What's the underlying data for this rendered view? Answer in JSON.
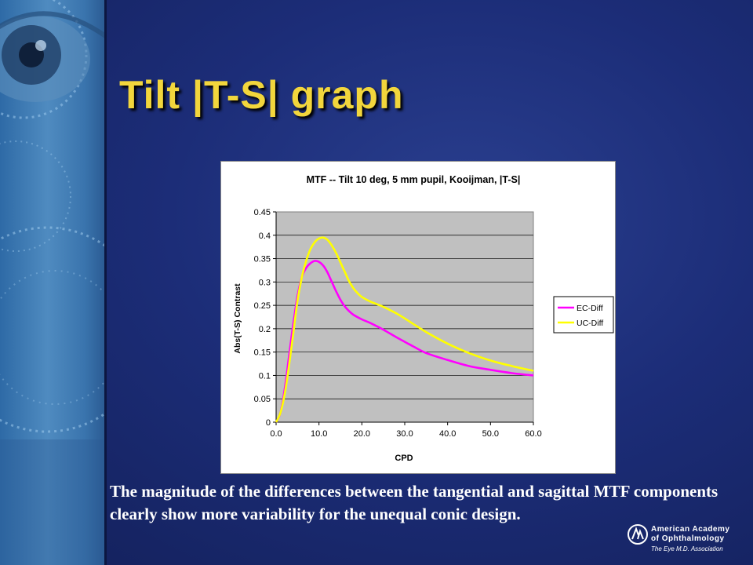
{
  "slide": {
    "title": "Tilt |T-S| graph",
    "caption": "The magnitude of the differences between the tangential and sagittal MTF components clearly show more variability for the unequal conic design."
  },
  "logo": {
    "line1": "American Academy",
    "line2": "of Ophthalmology",
    "tagline": "The Eye M.D. Association"
  },
  "colors": {
    "background": "#1c2d78",
    "title": "#f2d63c",
    "plot_area": "#c0c0c0",
    "ec_diff": "#ff00ff",
    "uc_diff": "#ffff00"
  },
  "chart_data": {
    "type": "line",
    "title": "MTF -- Tilt 10 deg, 5 mm pupil, Kooijman, |T-S|",
    "xlabel": "CPD",
    "ylabel": "Abs(T-S) Contrast",
    "xlim": [
      0,
      60
    ],
    "ylim": [
      0,
      0.45
    ],
    "x_ticks": [
      "0.0",
      "10.0",
      "20.0",
      "30.0",
      "40.0",
      "50.0",
      "60.0"
    ],
    "y_ticks": [
      "0",
      "0.05",
      "0.1",
      "0.15",
      "0.2",
      "0.25",
      "0.3",
      "0.35",
      "0.4",
      "0.45"
    ],
    "grid": "horizontal",
    "legend_position": "right",
    "series": [
      {
        "name": "EC-Diff",
        "color": "#ff00ff",
        "points": [
          [
            0,
            0
          ],
          [
            1,
            0.02
          ],
          [
            2,
            0.07
          ],
          [
            3,
            0.14
          ],
          [
            4,
            0.21
          ],
          [
            5,
            0.27
          ],
          [
            6,
            0.31
          ],
          [
            7,
            0.33
          ],
          [
            8,
            0.34
          ],
          [
            9,
            0.345
          ],
          [
            10,
            0.343
          ],
          [
            11,
            0.335
          ],
          [
            12,
            0.32
          ],
          [
            13,
            0.3
          ],
          [
            14,
            0.28
          ],
          [
            15,
            0.262
          ],
          [
            16,
            0.248
          ],
          [
            17,
            0.238
          ],
          [
            18,
            0.23
          ],
          [
            20,
            0.22
          ],
          [
            22,
            0.212
          ],
          [
            25,
            0.198
          ],
          [
            28,
            0.182
          ],
          [
            30,
            0.172
          ],
          [
            32,
            0.162
          ],
          [
            35,
            0.148
          ],
          [
            40,
            0.133
          ],
          [
            45,
            0.12
          ],
          [
            50,
            0.112
          ],
          [
            55,
            0.105
          ],
          [
            60,
            0.1
          ]
        ]
      },
      {
        "name": "UC-Diff",
        "color": "#ffff00",
        "points": [
          [
            0,
            0
          ],
          [
            1,
            0.02
          ],
          [
            2,
            0.06
          ],
          [
            3,
            0.12
          ],
          [
            4,
            0.19
          ],
          [
            5,
            0.26
          ],
          [
            6,
            0.31
          ],
          [
            7,
            0.345
          ],
          [
            8,
            0.37
          ],
          [
            9,
            0.385
          ],
          [
            10,
            0.393
          ],
          [
            11,
            0.395
          ],
          [
            12,
            0.39
          ],
          [
            13,
            0.378
          ],
          [
            14,
            0.362
          ],
          [
            15,
            0.342
          ],
          [
            16,
            0.322
          ],
          [
            17,
            0.302
          ],
          [
            18,
            0.287
          ],
          [
            19,
            0.276
          ],
          [
            20,
            0.268
          ],
          [
            22,
            0.258
          ],
          [
            25,
            0.247
          ],
          [
            28,
            0.233
          ],
          [
            30,
            0.222
          ],
          [
            35,
            0.193
          ],
          [
            40,
            0.168
          ],
          [
            45,
            0.148
          ],
          [
            50,
            0.132
          ],
          [
            55,
            0.12
          ],
          [
            60,
            0.11
          ]
        ]
      }
    ]
  }
}
